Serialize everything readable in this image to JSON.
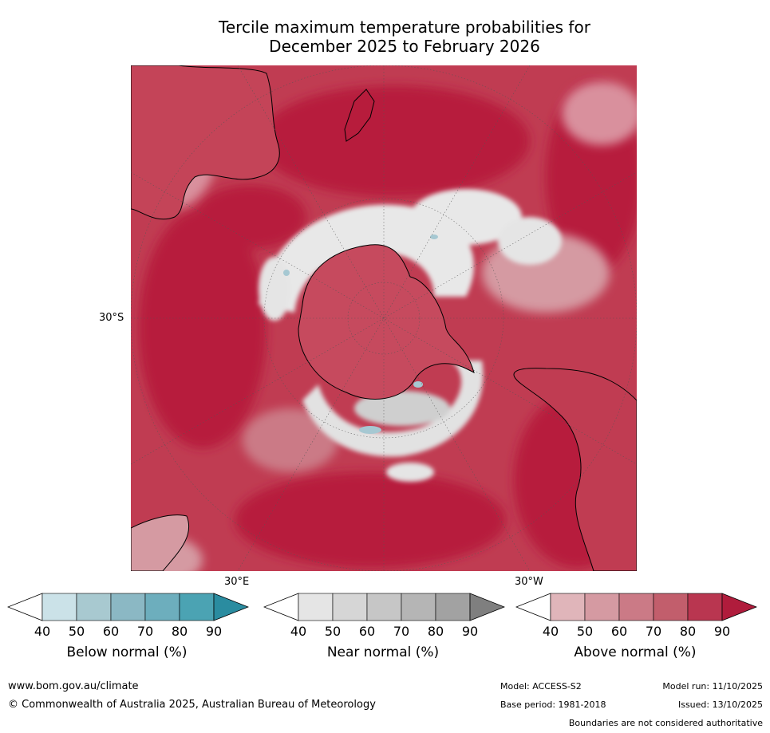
{
  "title": {
    "line1": "Tercile maximum temperature probabilities for",
    "line2": "December 2025 to February 2026"
  },
  "map": {
    "projection": "south-polar-stereographic",
    "lat_label": "30°S",
    "lon_label_east": "30°E",
    "lon_label_west": "30°W",
    "colors": {
      "ocean_dominant": "#b71c3c",
      "ocean_mid": "#c44458",
      "ocean_light": "#d9909d",
      "near_normal": "#e5e5e5",
      "near_normal_dark": "#c8c8c8",
      "below_normal": "#a6c8d2",
      "coast": "#000000"
    }
  },
  "colorbars": [
    {
      "label": "Below normal (%)",
      "ticks": [
        "40",
        "50",
        "60",
        "70",
        "80",
        "90"
      ],
      "colors": [
        "#cbe2e8",
        "#a8c9d0",
        "#8bb8c4",
        "#6daebd",
        "#4ba3b3"
      ],
      "low_color": "#ffffff",
      "high_color": "#2a8ca0"
    },
    {
      "label": "Near normal (%)",
      "ticks": [
        "40",
        "50",
        "60",
        "70",
        "80",
        "90"
      ],
      "colors": [
        "#e5e5e5",
        "#d6d6d6",
        "#c6c6c6",
        "#b5b5b5",
        "#a2a2a2"
      ],
      "low_color": "#ffffff",
      "high_color": "#7f7f7f"
    },
    {
      "label": "Above normal (%)",
      "ticks": [
        "40",
        "50",
        "60",
        "70",
        "80",
        "90"
      ],
      "colors": [
        "#e0b5ba",
        "#d59aa2",
        "#cb7a86",
        "#c25e6c",
        "#b93650"
      ],
      "low_color": "#ffffff",
      "high_color": "#b01c3c"
    }
  ],
  "footer": {
    "website": "www.bom.gov.au/climate",
    "copyright": "© Commonwealth of Australia 2025, Australian Bureau of Meteorology",
    "model": "Model: ACCESS-S2",
    "base_period": "Base period: 1981-2018",
    "model_run": "Model run: 11/10/2025",
    "issued": "Issued: 13/10/2025",
    "disclaimer": "Boundaries are not considered authoritative"
  }
}
